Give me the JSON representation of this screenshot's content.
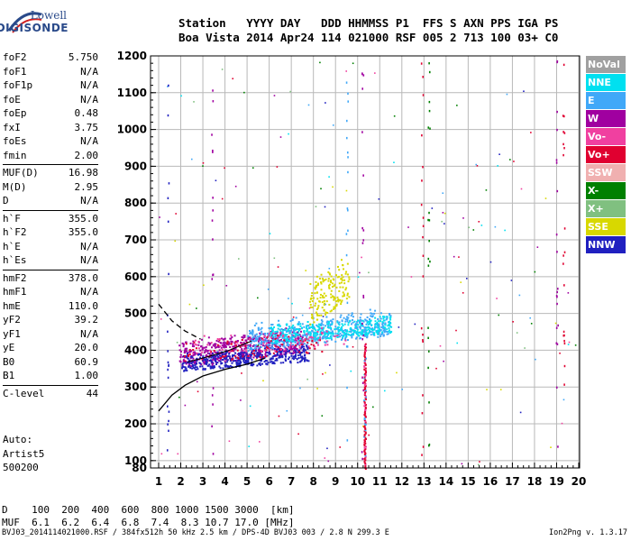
{
  "logo": {
    "line1": "Lowell",
    "line2": "DIGISONDE"
  },
  "header": {
    "line1": "Station   YYYY DAY   DDD HHMMSS P1  FFS S AXN PPS IGA PS",
    "line2": "Boa Vista 2014 Apr24 114 021000 RSF 005 2 713 100 03+ C0"
  },
  "params_groups": [
    [
      {
        "k": "foF2",
        "v": "5.750"
      },
      {
        "k": "foF1",
        "v": "N/A"
      },
      {
        "k": "foF1p",
        "v": "N/A"
      },
      {
        "k": "foE",
        "v": "N/A"
      },
      {
        "k": "foEp",
        "v": "0.48"
      },
      {
        "k": "fxI",
        "v": "3.75"
      },
      {
        "k": "foEs",
        "v": "N/A"
      },
      {
        "k": "fmin",
        "v": "2.00"
      }
    ],
    [
      {
        "k": "MUF(D)",
        "v": "16.98"
      },
      {
        "k": "M(D)",
        "v": "2.95"
      },
      {
        "k": "D",
        "v": "N/A"
      }
    ],
    [
      {
        "k": "h`F",
        "v": "355.0"
      },
      {
        "k": "h`F2",
        "v": "355.0"
      },
      {
        "k": "h`E",
        "v": "N/A"
      },
      {
        "k": "h`Es",
        "v": "N/A"
      }
    ],
    [
      {
        "k": "hmF2",
        "v": "378.0"
      },
      {
        "k": "hmF1",
        "v": "N/A"
      },
      {
        "k": "hmE",
        "v": "110.0"
      },
      {
        "k": "yF2",
        "v": "39.2"
      },
      {
        "k": "yF1",
        "v": "N/A"
      },
      {
        "k": "yE",
        "v": "20.0"
      },
      {
        "k": "B0",
        "v": "60.9"
      },
      {
        "k": "B1",
        "v": "1.00"
      }
    ],
    [
      {
        "k": "C-level",
        "v": "44"
      }
    ]
  ],
  "auto": [
    "Auto:",
    "Artist5",
    "500200"
  ],
  "legend": [
    {
      "label": "NoVal",
      "color": "#a0a0a0"
    },
    {
      "label": "NNE",
      "color": "#00e0f0"
    },
    {
      "label": "E",
      "color": "#40a8f8"
    },
    {
      "label": "W",
      "color": "#a000a0"
    },
    {
      "label": "Vo-",
      "color": "#f040a0"
    },
    {
      "label": "Vo+",
      "color": "#e00030"
    },
    {
      "label": "SSW",
      "color": "#f0b0b0"
    },
    {
      "label": "X-",
      "color": "#008000"
    },
    {
      "label": "X+",
      "color": "#80c080"
    },
    {
      "label": "SSE",
      "color": "#d8d800"
    },
    {
      "label": "NNW",
      "color": "#2020c0"
    }
  ],
  "muf_table": {
    "d_label": "D",
    "muf_label": "MUF",
    "distances": [
      "100",
      "200",
      "400",
      "600",
      "800",
      "1000",
      "1500",
      "3000",
      "[km]"
    ],
    "mufs": [
      "6.1",
      "6.2",
      "6.4",
      "6.8",
      "7.4",
      "8.3",
      "10.7",
      "17.0",
      "[MHz]"
    ]
  },
  "footer": "BVJ03_2014114021000.RSF / 384fx512h 50 kHz 2.5 km / DPS-4D BVJ03 003 / 2.8 N 299.3 E",
  "version": "Ion2Png v. 1.3.17",
  "chart_data": {
    "type": "scatter",
    "title": "",
    "xlabel": "",
    "ylabel": "",
    "xlim": [
      1,
      20
    ],
    "ylim": [
      80,
      1200
    ],
    "xticks": [
      1,
      2,
      3,
      4,
      5,
      6,
      7,
      8,
      9,
      10,
      11,
      12,
      13,
      14,
      15,
      16,
      17,
      18,
      19,
      20
    ],
    "yticks": [
      80,
      100,
      200,
      300,
      400,
      500,
      600,
      700,
      800,
      900,
      1000,
      1100,
      1200
    ],
    "grid": true,
    "legend_position": "right",
    "clusters": [
      {
        "series": "W",
        "x": [
          1.9,
          7.5
        ],
        "y": [
          355,
          470
        ],
        "n": 520
      },
      {
        "series": "NNW",
        "x": [
          2.0,
          7.8
        ],
        "y": [
          345,
          420
        ],
        "n": 420
      },
      {
        "series": "E",
        "x": [
          5.0,
          11.5
        ],
        "y": [
          400,
          520
        ],
        "n": 520
      },
      {
        "series": "NNE",
        "x": [
          6.0,
          11.5
        ],
        "y": [
          420,
          500
        ],
        "n": 300
      },
      {
        "series": "SSE",
        "x": [
          7.8,
          9.6
        ],
        "y": [
          470,
          670
        ],
        "n": 160
      },
      {
        "series": "Vo+",
        "x": [
          2.0,
          8.5
        ],
        "y": [
          365,
          460
        ],
        "n": 90
      },
      {
        "series": "Vo-",
        "x": [
          2.5,
          9.5
        ],
        "y": [
          380,
          480
        ],
        "n": 80
      }
    ],
    "trace_profile": {
      "x": [
        1,
        1.6,
        2.2,
        3,
        4,
        5,
        5.8
      ],
      "y": [
        235,
        278,
        305,
        330,
        348,
        362,
        378
      ]
    },
    "trace_dashed": {
      "x": [
        1,
        1.6,
        2.2,
        2.9
      ],
      "y": [
        525,
        480,
        452,
        430
      ]
    },
    "trace_short": {
      "x": [
        2.3,
        3.2,
        4.2,
        5.2
      ],
      "y": [
        368,
        382,
        400,
        425
      ]
    },
    "vertical_band": {
      "series": "Vo+",
      "x": 10.3,
      "y": [
        80,
        420
      ]
    }
  }
}
